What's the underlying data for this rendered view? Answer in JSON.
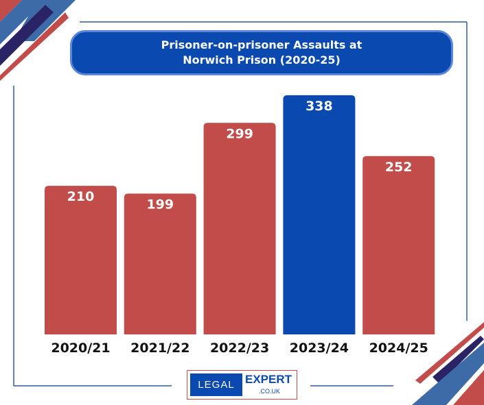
{
  "chart_data": {
    "type": "bar",
    "title": "Prisoner-on-prisoner Assaults at Norwich Prison (2020-25)",
    "title_lines": [
      "Prisoner-on-prisoner Assaults at",
      "Norwich Prison (2020-25)"
    ],
    "categories": [
      "2020/21",
      "2021/22",
      "2022/23",
      "2023/24",
      "2024/25"
    ],
    "values": [
      210,
      199,
      299,
      338,
      252
    ],
    "highlight_index": 3,
    "xlabel": "",
    "ylabel": "",
    "ylim": [
      0,
      338
    ],
    "grid": false
  },
  "colors": {
    "bar": "#c14c49",
    "highlight": "#0a49b0",
    "navy": "#2a2466",
    "steel": "#3d6ba8"
  },
  "logo": {
    "left": "LEGAL",
    "right": "EXPERT",
    "domain": ".CO.UK"
  }
}
